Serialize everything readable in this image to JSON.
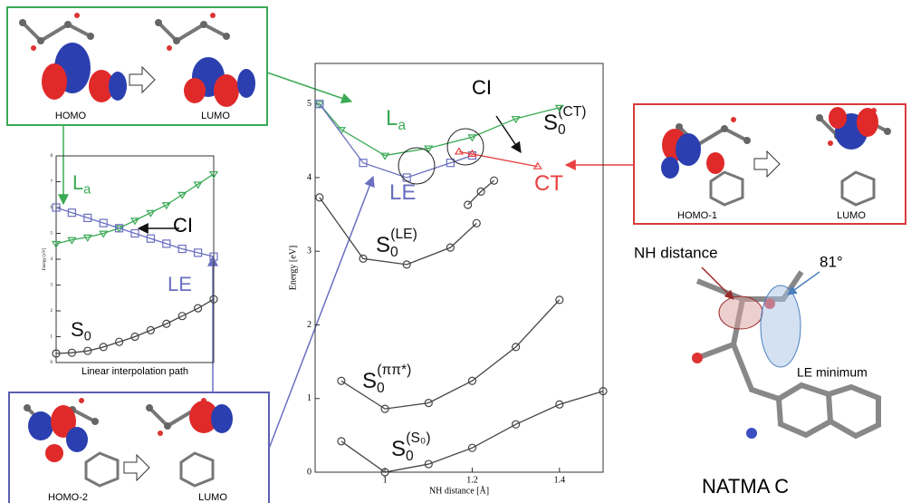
{
  "chart_data": [
    {
      "type": "line",
      "y_label": "Energy [eV]",
      "x_label": "NH distance [Å]",
      "xlim": [
        0.84,
        1.5
      ],
      "ylim": [
        0,
        5.55
      ],
      "xticks": [
        1,
        1.2,
        1.4
      ],
      "yticks": [
        0,
        1,
        2,
        3,
        4,
        5
      ],
      "series": [
        {
          "name": "S",
          "sub": "0",
          "sup": "(S₀)",
          "color": "#444444",
          "marker": "circle",
          "x": [
            0.9,
            1.0,
            1.1,
            1.2,
            1.3,
            1.4,
            1.5
          ],
          "values": [
            0.42,
            0.0,
            0.11,
            0.33,
            0.65,
            0.92,
            1.1
          ]
        },
        {
          "name": "S",
          "sub": "0",
          "sup": "(ππ*)",
          "color": "#444444",
          "marker": "circle",
          "x": [
            0.9,
            1.0,
            1.1,
            1.2,
            1.3,
            1.4
          ],
          "values": [
            1.24,
            0.86,
            0.94,
            1.24,
            1.7,
            2.34
          ]
        },
        {
          "name": "S",
          "sub": "0",
          "sup": "(LE)",
          "color": "#444444",
          "marker": "circle",
          "x": [
            0.85,
            0.95,
            1.05,
            1.15,
            1.21
          ],
          "values": [
            3.73,
            2.9,
            2.82,
            3.05,
            3.38
          ]
        },
        {
          "name": "S",
          "sub": "0",
          "sup": "(CT)",
          "color": "#444444",
          "marker": "circle",
          "x": [
            1.19,
            1.22,
            1.25
          ],
          "values": [
            3.63,
            3.81,
            3.96
          ]
        },
        {
          "name": "L",
          "sub": "a",
          "color": "#3aaa55",
          "marker": "triangle-down",
          "x": [
            0.85,
            0.9,
            1.0,
            1.1,
            1.2,
            1.3,
            1.4
          ],
          "values": [
            5.0,
            4.65,
            4.3,
            4.4,
            4.55,
            4.8,
            4.95
          ]
        },
        {
          "name": "LE",
          "color": "#6a6fc0",
          "marker": "square",
          "x": [
            0.85,
            0.95,
            1.05,
            1.15,
            1.2
          ],
          "values": [
            5.0,
            4.2,
            4.0,
            4.2,
            4.3
          ]
        },
        {
          "name": "CT",
          "color": "#e84040",
          "marker": "triangle",
          "x": [
            1.17,
            1.2,
            1.35
          ],
          "values": [
            4.35,
            4.32,
            4.15
          ]
        }
      ],
      "annotation": "CI"
    },
    {
      "type": "line",
      "y_label": "Energy [eV]",
      "x_label": "Linear interpolation path",
      "xlim": [
        0,
        10
      ],
      "ylim": [
        0,
        8
      ],
      "yticks": [
        0,
        1,
        2,
        3,
        4,
        5,
        6,
        7,
        8
      ],
      "series": [
        {
          "name": "S",
          "sub": "0",
          "color": "#444444",
          "marker": "circle",
          "values": [
            0.35,
            0.38,
            0.45,
            0.6,
            0.8,
            1.0,
            1.25,
            1.5,
            1.8,
            2.1,
            2.45
          ]
        },
        {
          "name": "L",
          "sub": "a",
          "color": "#3aaa55",
          "marker": "triangle-down",
          "values": [
            4.6,
            4.75,
            4.85,
            5.0,
            5.2,
            5.5,
            5.8,
            6.1,
            6.5,
            6.9,
            7.3
          ]
        },
        {
          "name": "LE",
          "color": "#6a6fc0",
          "marker": "square",
          "values": [
            6.0,
            5.8,
            5.6,
            5.4,
            5.2,
            5.0,
            4.8,
            4.6,
            4.4,
            4.25,
            4.1
          ]
        }
      ],
      "annotation": "CI"
    }
  ],
  "panels": {
    "green": [
      "HOMO",
      "LUMO"
    ],
    "red": [
      "HOMO-1",
      "LUMO"
    ],
    "blue": [
      "HOMO-2",
      "LUMO"
    ],
    "structure": {
      "nh": "NH distance",
      "angle": "81°",
      "minimum": "LE minimum",
      "name": "NATMA C"
    }
  }
}
